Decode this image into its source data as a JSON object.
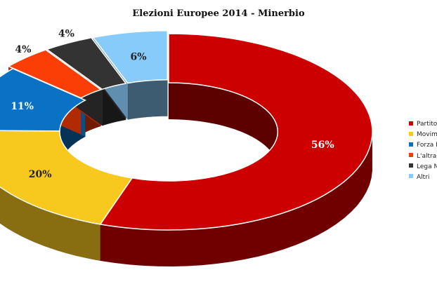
{
  "chart_data": {
    "type": "pie",
    "style": "3d-donut",
    "title": "Elezioni Europee 2014 - Minerbio",
    "legend_position": "right",
    "slices": [
      {
        "legend": "Partito",
        "label": "56%",
        "value": 56,
        "color": "#cc0000",
        "label_color": "#ffffff"
      },
      {
        "legend": "Movime",
        "label": "20%",
        "value": 20,
        "color": "#f7c81e",
        "label_color": "#222222"
      },
      {
        "legend": "Forza It",
        "label": "11%",
        "value": 11,
        "color": "#0a72c4",
        "label_color": "#ffffff"
      },
      {
        "legend": "L'altra I",
        "label": "4%",
        "value": 4,
        "color": "#fb3d06",
        "label_color": "#222222",
        "exploded": true
      },
      {
        "legend": "Lega No",
        "label": "4%",
        "value": 4,
        "color": "#333333",
        "label_color": "#222222",
        "exploded": true
      },
      {
        "legend": "Altri",
        "label": "6%",
        "value": 6,
        "color": "#87cbfa",
        "label_color": "#222222",
        "exploded": true
      }
    ]
  }
}
